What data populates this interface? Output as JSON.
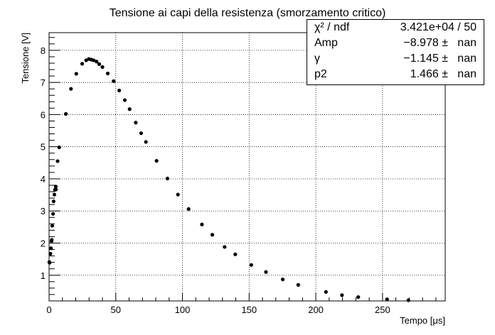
{
  "chart_data": {
    "type": "scatter",
    "title": "Tensione ai capi della resistenza (smorzamento critico)",
    "xlabel": "Tempo [μs]",
    "ylabel": "Tensione [V]",
    "xlim": [
      0,
      297
    ],
    "ylim": [
      0.2,
      8.55
    ],
    "grid": true,
    "x_ticks": [
      0,
      50,
      100,
      150,
      200,
      250
    ],
    "y_ticks": [
      1,
      2,
      3,
      4,
      5,
      6,
      7,
      8
    ],
    "series": [
      {
        "color": "#000000",
        "x": [
          0.2,
          0.4,
          1.0,
          1.4,
          1.8,
          2.0,
          2.4,
          3.0,
          3.4,
          4.0,
          4.4,
          5.0,
          5.2,
          6.4,
          7.6,
          12.6,
          16.4,
          20.4,
          24.8,
          27.8,
          29.8,
          31.6,
          33.4,
          35.6,
          37.6,
          40.0,
          44.0,
          48.4,
          52.6,
          56.8,
          60.4,
          65.0,
          69.0,
          72.6,
          80.6,
          88.8,
          96.6,
          104.6,
          114.6,
          122.4,
          131.6,
          139.6,
          151.6,
          162.6,
          175.2,
          186.8,
          207.6,
          219.6,
          231.8,
          253.4,
          269.4
        ],
        "y": [
          1.41,
          1.39,
          1.67,
          1.84,
          2.06,
          2.1,
          2.54,
          2.91,
          3.3,
          3.51,
          3.66,
          3.76,
          3.67,
          4.55,
          4.98,
          6.02,
          6.8,
          7.27,
          7.58,
          7.69,
          7.73,
          7.71,
          7.69,
          7.65,
          7.57,
          7.48,
          7.28,
          7.04,
          6.75,
          6.45,
          6.17,
          5.75,
          5.42,
          5.15,
          4.56,
          4.01,
          3.51,
          3.06,
          2.58,
          2.26,
          1.88,
          1.65,
          1.32,
          1.1,
          0.87,
          0.7,
          0.48,
          0.38,
          0.32,
          0.25,
          0.22
        ]
      }
    ]
  },
  "stats": {
    "rows": [
      {
        "name": "χ² / ndf",
        "value": "3.421e+04 / 50"
      },
      {
        "name": "Amp",
        "value": "−8.978 ±   nan"
      },
      {
        "name": "γ",
        "value": "−1.145 ±   nan"
      },
      {
        "name": "p2",
        "value": "1.466 ±   nan"
      }
    ]
  }
}
